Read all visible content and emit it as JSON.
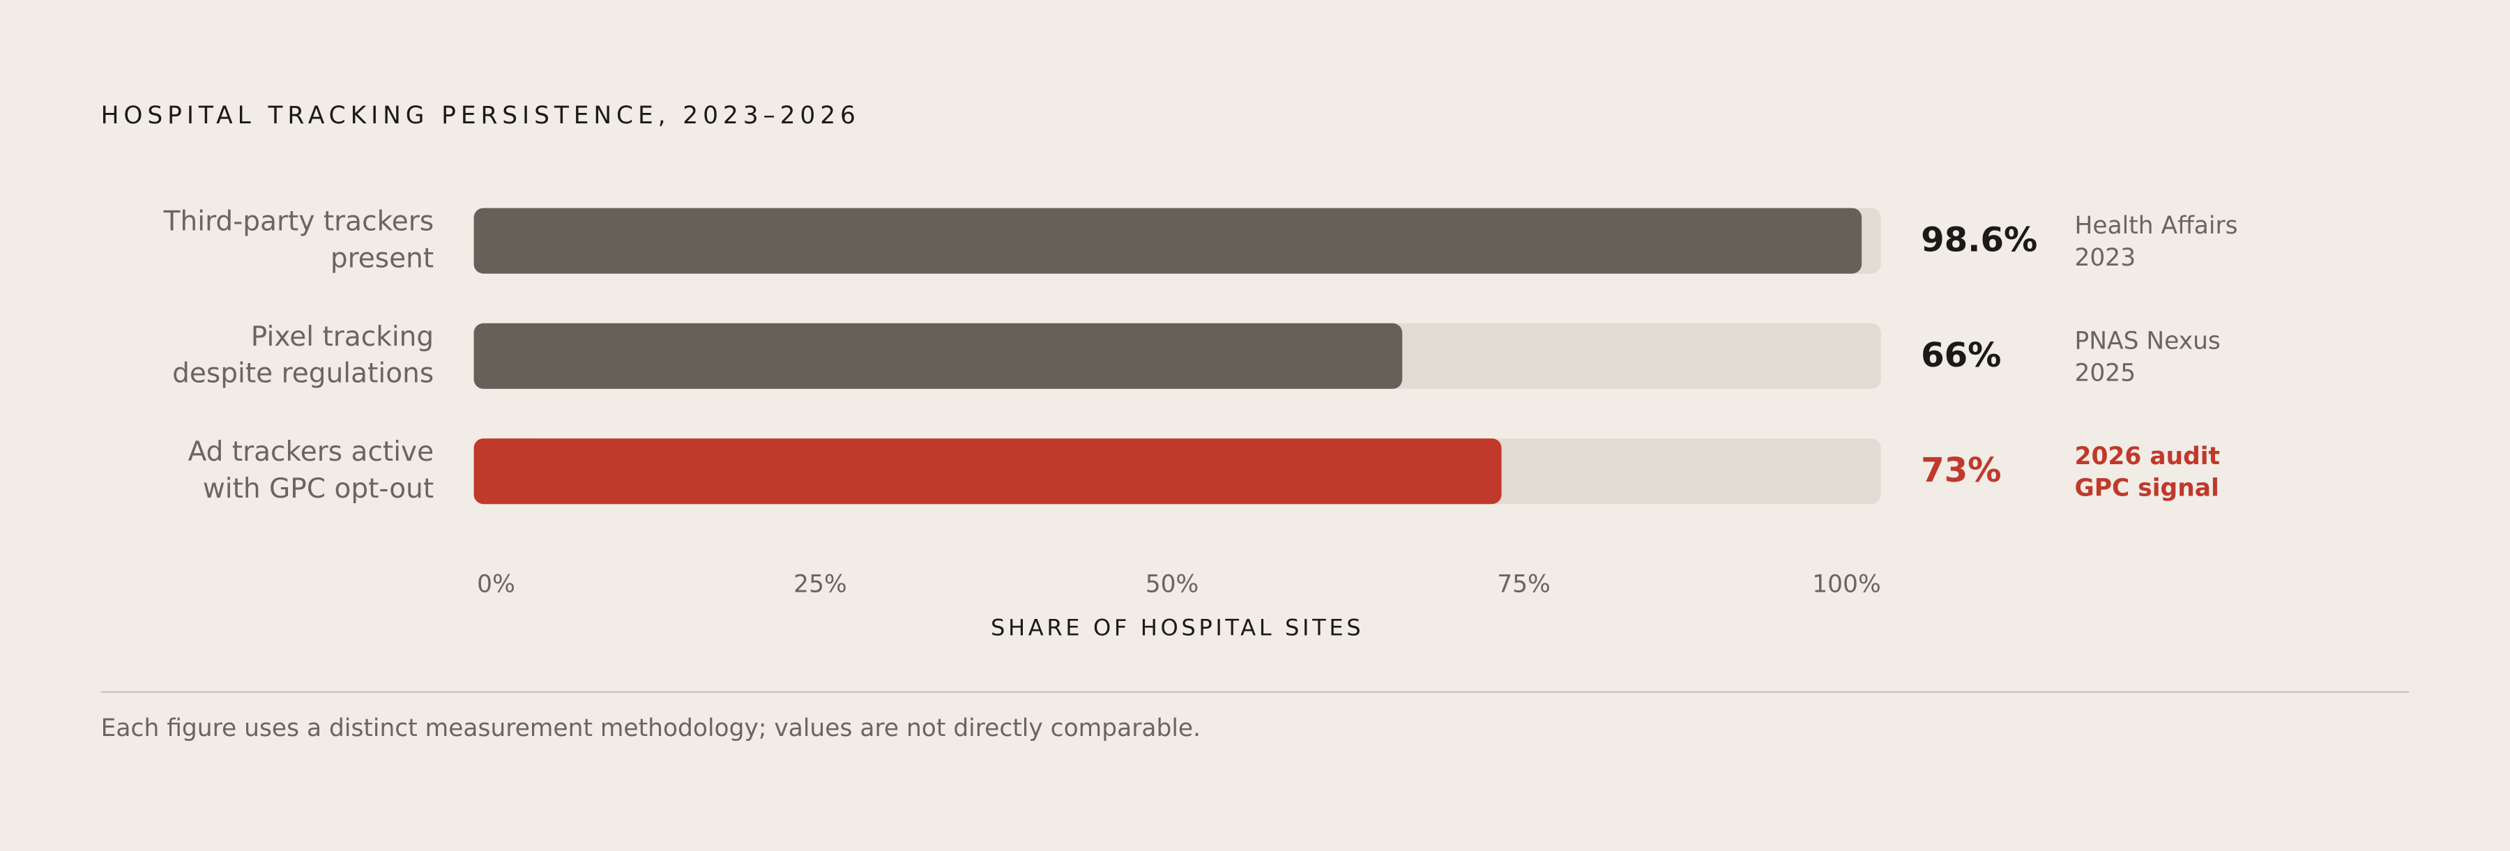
{
  "chart_data": {
    "type": "bar",
    "orientation": "horizontal",
    "title": "HOSPITAL TRACKING PERSISTENCE, 2023–2026",
    "categories": [
      "Third-party trackers present",
      "Pixel tracking despite regulations",
      "Ad trackers active with GPC opt-out"
    ],
    "values": [
      98.6,
      66,
      73
    ],
    "value_labels": [
      "98.6%",
      "66%",
      "73%"
    ],
    "sources": [
      "Health Affairs 2023",
      "PNAS Nexus 2025",
      "2026 audit GPC signal"
    ],
    "colors": [
      "#676059",
      "#676059",
      "#c0392b"
    ],
    "highlight_color": "#c0392b",
    "xlim": [
      0,
      100
    ],
    "xticks": [
      {
        "value": 0,
        "label": "0%"
      },
      {
        "value": 25,
        "label": "25%"
      },
      {
        "value": 50,
        "label": "50%"
      },
      {
        "value": 75,
        "label": "75%"
      },
      {
        "value": 100,
        "label": "100%"
      }
    ],
    "xlabel": "SHARE OF HOSPITAL SITES",
    "footnote": "Each figure uses a distinct measurement methodology; values are not directly comparable."
  }
}
